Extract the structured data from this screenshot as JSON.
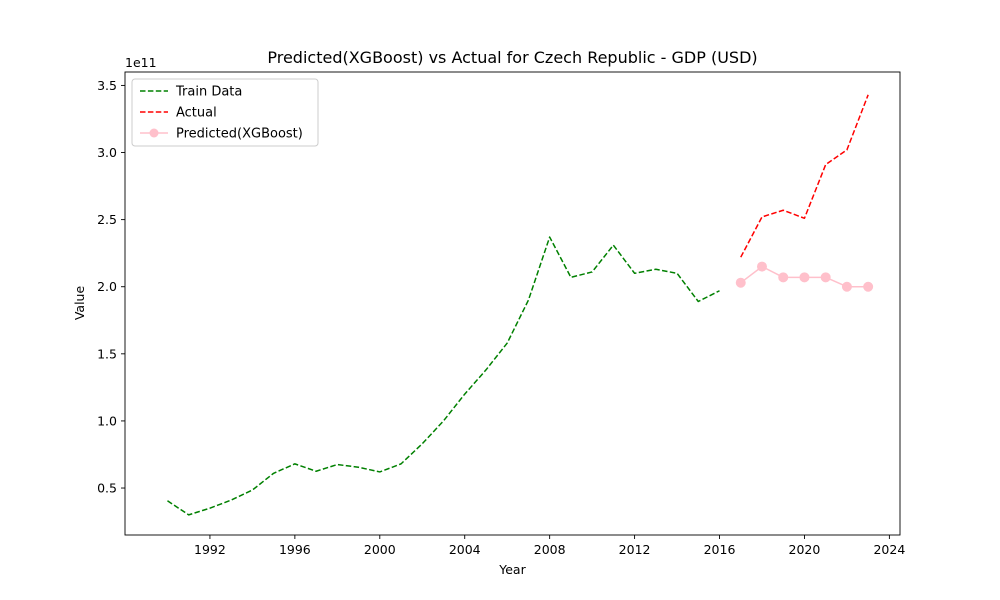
{
  "chart_data": {
    "type": "line",
    "title": "Predicted(XGBoost) vs Actual for Czech Republic - GDP (USD)",
    "xlabel": "Year",
    "ylabel": "Value",
    "y_offset_label": "1e11",
    "xlim": [
      1988,
      2024.5
    ],
    "ylim": [
      15000000000.0,
      360000000000.0
    ],
    "x_ticks": [
      1992,
      1996,
      2000,
      2004,
      2008,
      2012,
      2016,
      2020,
      2024
    ],
    "x_tick_labels": [
      "1992",
      "1996",
      "2000",
      "2004",
      "2008",
      "2012",
      "2016",
      "2020",
      "2024"
    ],
    "y_ticks": [
      50000000000.0,
      100000000000.0,
      150000000000.0,
      200000000000.0,
      250000000000.0,
      300000000000.0,
      350000000000.0
    ],
    "y_tick_labels": [
      "0.5",
      "1.0",
      "1.5",
      "2.0",
      "2.5",
      "3.0",
      "3.5"
    ],
    "grid": false,
    "legend_position": "top-left",
    "series": [
      {
        "name": "Train Data",
        "color": "#008000",
        "style": "dashed",
        "marker": "none",
        "x": [
          1990,
          1991,
          1992,
          1993,
          1994,
          1995,
          1996,
          1997,
          1998,
          1999,
          2000,
          2001,
          2002,
          2003,
          2004,
          2005,
          2006,
          2007,
          2008,
          2009,
          2010,
          2011,
          2012,
          2013,
          2014,
          2015,
          2016
        ],
        "y": [
          40500000000.0,
          30000000000.0,
          35000000000.0,
          41000000000.0,
          48500000000.0,
          61000000000.0,
          68000000000.0,
          62500000000.0,
          67500000000.0,
          65500000000.0,
          62000000000.0,
          68000000000.0,
          83000000000.0,
          100000000000.0,
          120000000000.0,
          138000000000.0,
          158000000000.0,
          190000000000.0,
          237000000000.0,
          207000000000.0,
          211000000000.0,
          231000000000.0,
          210000000000.0,
          213000000000.0,
          210000000000.0,
          189000000000.0,
          197000000000.0
        ]
      },
      {
        "name": "Actual",
        "color": "#ff0000",
        "style": "dashed",
        "marker": "none",
        "x": [
          2017,
          2018,
          2019,
          2020,
          2021,
          2022,
          2023
        ],
        "y": [
          222000000000.0,
          252000000000.0,
          257000000000.0,
          251000000000.0,
          291000000000.0,
          302000000000.0,
          343000000000.0
        ]
      },
      {
        "name": "Predicted(XGBoost)",
        "color": "#ffc0cb",
        "style": "solid",
        "marker": "circle",
        "x": [
          2017,
          2018,
          2019,
          2020,
          2021,
          2022,
          2023
        ],
        "y": [
          203000000000.0,
          215000000000.0,
          207000000000.0,
          207000000000.0,
          207000000000.0,
          200000000000.0,
          200000000000.0
        ]
      }
    ]
  }
}
